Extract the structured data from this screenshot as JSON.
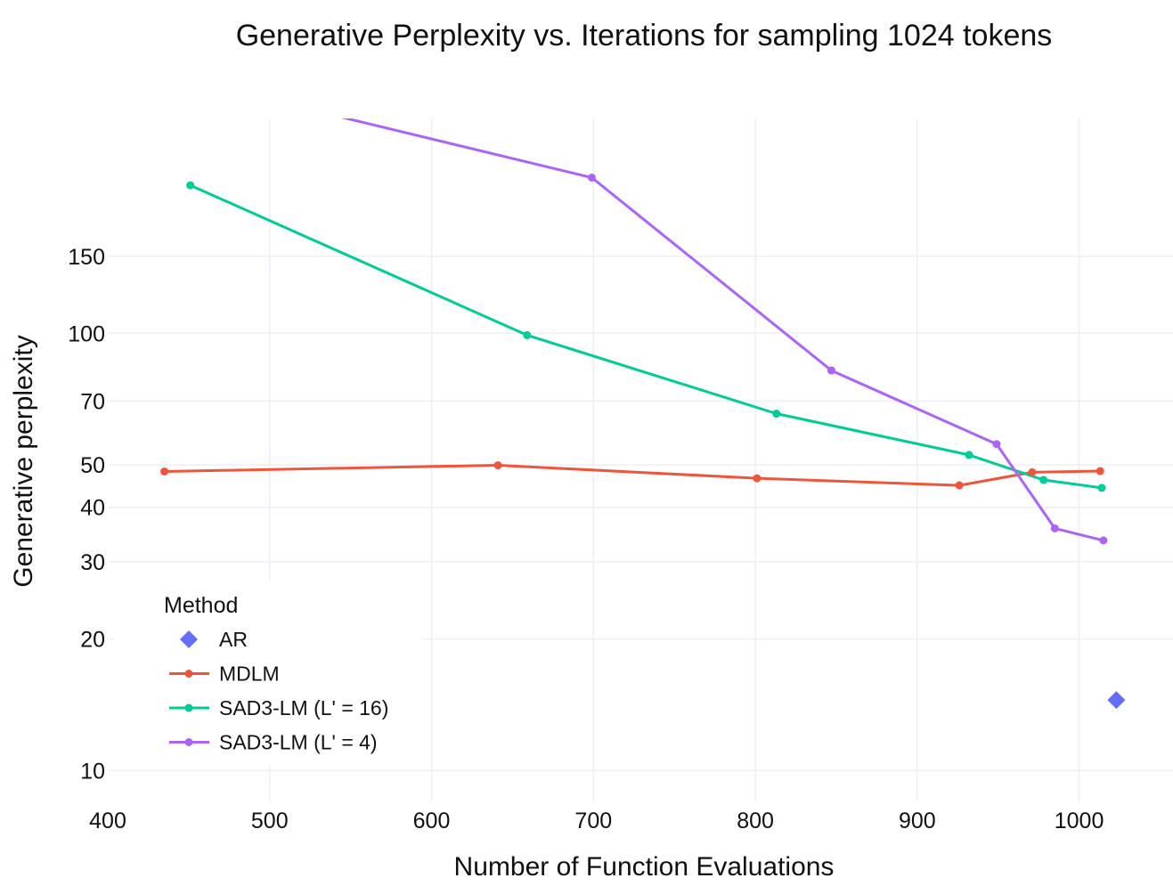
{
  "chart_data": {
    "type": "line",
    "title": "Generative Perplexity vs. Iterations for sampling 1024 tokens",
    "xlabel": "Number of Function Evaluations",
    "ylabel": "Generative perplexity",
    "xlim": [
      400,
      1058
    ],
    "ylim": [
      8.5,
      310
    ],
    "yscale": "log",
    "xticks": [
      400,
      500,
      600,
      700,
      800,
      900,
      1000
    ],
    "yticks": [
      10,
      20,
      30,
      40,
      50,
      70,
      100,
      150
    ],
    "grid": true,
    "legend": {
      "title": "Method",
      "position": "bottom-left"
    },
    "series": [
      {
        "name": "AR",
        "marker": "diamond",
        "mode": "markers",
        "color": "#636efa",
        "x": [
          1023
        ],
        "y": [
          14.5
        ]
      },
      {
        "name": "MDLM",
        "marker": "circle",
        "mode": "lines+markers",
        "color": "#ef553b",
        "x": [
          435,
          641,
          801,
          926,
          971,
          1013
        ],
        "y": [
          48.3,
          49.9,
          46.6,
          44.9,
          48.1,
          48.4
        ]
      },
      {
        "name": "SAD3-LM (L' = 16)",
        "marker": "circle",
        "mode": "lines+markers",
        "color": "#00cc96",
        "x": [
          451,
          659,
          813,
          932,
          978,
          1014
        ],
        "y": [
          218,
          99,
          65.5,
          52.7,
          46.2,
          44.3
        ]
      },
      {
        "name": "SAD3-LM (L' = 4)",
        "marker": "circle",
        "mode": "lines+markers",
        "color": "#ab63fa",
        "x": [
          400,
          699,
          847,
          949,
          985,
          1015
        ],
        "y": [
          420,
          227,
          82.2,
          55.8,
          35.8,
          33.6
        ]
      }
    ]
  }
}
